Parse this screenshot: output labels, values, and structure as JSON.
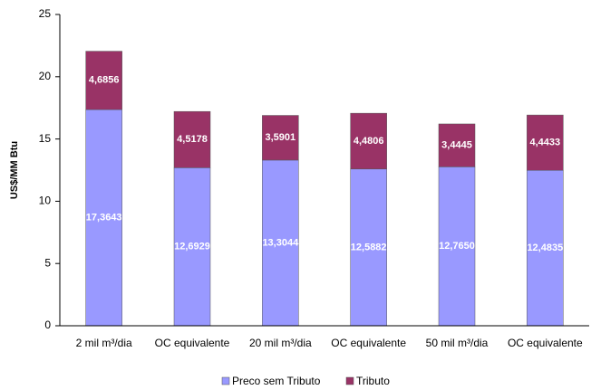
{
  "chart_data": {
    "type": "stacked_bar",
    "y_label": "US$/MM Btu",
    "categories": [
      "2 mil m³/dia",
      "OC equivalente",
      "20 mil m³/dia",
      "OC equivalente",
      "50 mil m³/dia",
      "OC equivalente"
    ],
    "series": [
      {
        "name": "Preco sem Tributo",
        "color": "#9999ff",
        "values": [
          17.3643,
          12.6929,
          13.3044,
          12.5882,
          12.765,
          12.4835
        ],
        "value_labels": [
          "17,3643",
          "12,6929",
          "13,3044",
          "12,5882",
          "12,7650",
          "12,4835"
        ]
      },
      {
        "name": "Tributo",
        "color": "#993366",
        "values": [
          4.6856,
          4.5178,
          3.5901,
          4.4806,
          3.4445,
          4.4433
        ],
        "value_labels": [
          "4,6856",
          "4,5178",
          "3,5901",
          "4,4806",
          "3,4445",
          "4,4433"
        ]
      }
    ],
    "ylim": [
      0,
      25
    ],
    "yticks": [
      0,
      5,
      10,
      15,
      20,
      25
    ],
    "legend": "bottom"
  }
}
